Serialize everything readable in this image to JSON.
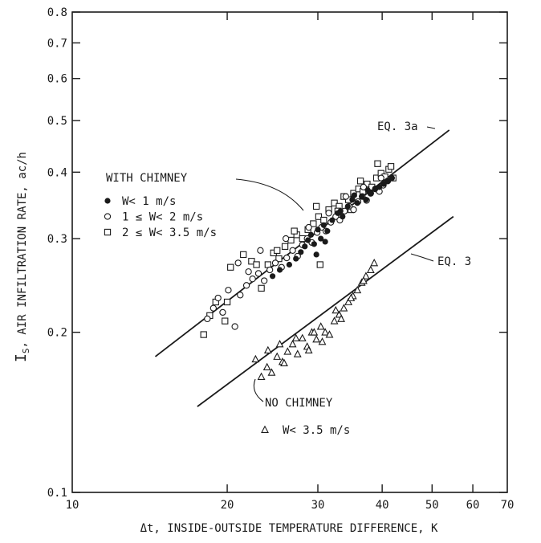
{
  "chart_data": {
    "type": "scatter",
    "x_scale": "log",
    "y_scale": "log",
    "xlim": [
      10,
      70
    ],
    "ylim": [
      0.1,
      0.8
    ],
    "grid": false,
    "xlabel": "Δt, INSIDE-OUTSIDE TEMPERATURE DIFFERENCE, K",
    "ylabel_main": "I",
    "ylabel_sub": "S",
    "ylabel_rest": ", AIR INFILTRATION RATE, ac/h",
    "x_ticks": [
      {
        "value": 10,
        "label": "10"
      },
      {
        "value": 20,
        "label": "20"
      },
      {
        "value": 30,
        "label": "30"
      },
      {
        "value": 40,
        "label": "40"
      },
      {
        "value": 50,
        "label": "50"
      },
      {
        "value": 60,
        "label": "60"
      },
      {
        "value": 70,
        "label": "70"
      }
    ],
    "y_ticks": [
      {
        "value": 0.1,
        "label": "0.1"
      },
      {
        "value": 0.2,
        "label": "0.2"
      },
      {
        "value": 0.3,
        "label": "0.3"
      },
      {
        "value": 0.4,
        "label": "0.4"
      },
      {
        "value": 0.5,
        "label": "0.5"
      },
      {
        "value": 0.6,
        "label": "0.6"
      },
      {
        "value": 0.7,
        "label": "0.7"
      },
      {
        "value": 0.8,
        "label": "0.8"
      }
    ],
    "legend_with_chimney": {
      "heading": "WITH CHIMNEY",
      "entries": [
        {
          "marker": "filled-circle",
          "label": "W< 1 m/s"
        },
        {
          "marker": "open-circle",
          "label": "1 ≤ W< 2 m/s"
        },
        {
          "marker": "open-square",
          "label": "2 ≤ W< 3.5 m/s"
        }
      ]
    },
    "legend_no_chimney": {
      "heading": "NO CHIMNEY",
      "entries": [
        {
          "marker": "open-triangle",
          "label": "W< 3.5 m/s"
        }
      ]
    },
    "lines": [
      {
        "name": "EQ. 3a",
        "x": [
          14.5,
          54
        ],
        "y": [
          0.18,
          0.48
        ]
      },
      {
        "name": "EQ. 3",
        "x": [
          17.5,
          55
        ],
        "y": [
          0.145,
          0.33
        ]
      }
    ],
    "series": [
      {
        "marker": "filled-circle",
        "x": [
          24.5,
          25.3,
          26.4,
          27.2,
          27.8,
          28.3,
          28.7,
          29.1,
          29.5,
          30.0,
          30.4,
          30.8,
          31.3,
          32.0,
          32.8,
          33.5,
          34.3,
          35.0,
          35.8,
          36.5,
          37.2,
          38.0,
          38.8,
          39.5,
          40.3,
          41.0,
          41.8,
          29.8,
          31.0,
          33.2,
          35.3,
          37.5
        ],
        "y": [
          0.255,
          0.262,
          0.268,
          0.275,
          0.283,
          0.29,
          0.298,
          0.305,
          0.293,
          0.312,
          0.3,
          0.318,
          0.31,
          0.325,
          0.335,
          0.33,
          0.345,
          0.355,
          0.35,
          0.36,
          0.355,
          0.365,
          0.372,
          0.375,
          0.38,
          0.385,
          0.39,
          0.28,
          0.296,
          0.338,
          0.362,
          0.37
        ]
      },
      {
        "marker": "open-circle",
        "x": [
          18.3,
          18.8,
          19.2,
          19.6,
          20.1,
          20.7,
          21.2,
          21.8,
          22.4,
          23.0,
          23.6,
          24.2,
          24.8,
          25.5,
          26.1,
          26.8,
          27.4,
          28.0,
          28.6,
          29.2,
          29.9,
          30.5,
          31.1,
          31.8,
          32.5,
          33.1,
          33.8,
          34.5,
          35.2,
          35.9,
          36.6,
          37.3,
          38.0,
          38.8,
          39.5,
          40.2,
          41.0,
          21.0,
          22.0,
          23.2,
          26.0,
          28.8,
          31.5,
          34.0,
          36.8,
          39.8
        ],
        "y": [
          0.212,
          0.222,
          0.232,
          0.218,
          0.24,
          0.205,
          0.235,
          0.245,
          0.252,
          0.258,
          0.25,
          0.262,
          0.27,
          0.265,
          0.276,
          0.285,
          0.278,
          0.292,
          0.3,
          0.295,
          0.308,
          0.315,
          0.31,
          0.322,
          0.33,
          0.325,
          0.338,
          0.345,
          0.34,
          0.352,
          0.36,
          0.354,
          0.365,
          0.372,
          0.368,
          0.378,
          0.385,
          0.27,
          0.26,
          0.285,
          0.3,
          0.315,
          0.335,
          0.36,
          0.375,
          0.39
        ]
      },
      {
        "marker": "open-square",
        "x": [
          18.0,
          18.5,
          19.0,
          19.8,
          20.3,
          21.5,
          22.3,
          23.3,
          24.0,
          24.6,
          25.2,
          25.9,
          26.6,
          27.3,
          28.0,
          28.7,
          29.4,
          30.1,
          30.8,
          31.5,
          32.3,
          33.0,
          33.7,
          34.4,
          35.2,
          36.0,
          36.7,
          37.4,
          38.2,
          39.0,
          39.8,
          40.5,
          41.2,
          42.0,
          20.0,
          22.8,
          25.0,
          27.0,
          29.8,
          32.8,
          36.3,
          39.2,
          41.6,
          30.3,
          34.8
        ],
        "y": [
          0.198,
          0.215,
          0.228,
          0.21,
          0.265,
          0.28,
          0.272,
          0.242,
          0.268,
          0.282,
          0.275,
          0.29,
          0.298,
          0.305,
          0.3,
          0.312,
          0.32,
          0.33,
          0.325,
          0.34,
          0.35,
          0.345,
          0.36,
          0.355,
          0.365,
          0.372,
          0.368,
          0.38,
          0.375,
          0.39,
          0.398,
          0.392,
          0.405,
          0.39,
          0.228,
          0.268,
          0.285,
          0.31,
          0.345,
          0.338,
          0.385,
          0.415,
          0.41,
          0.268,
          0.34
        ]
      },
      {
        "marker": "open-triangle",
        "x": [
          22.7,
          23.3,
          23.9,
          24.4,
          25.0,
          25.6,
          26.2,
          26.8,
          27.4,
          28.0,
          28.6,
          29.2,
          29.8,
          30.4,
          31.0,
          31.6,
          32.3,
          33.0,
          33.7,
          34.4,
          35.1,
          35.8,
          36.5,
          37.2,
          38.0,
          38.6,
          24.0,
          25.3,
          27.2,
          28.8,
          30.6,
          32.5,
          34.8,
          36.8,
          25.8,
          29.5,
          33.3
        ],
        "y": [
          0.178,
          0.165,
          0.172,
          0.168,
          0.18,
          0.176,
          0.184,
          0.19,
          0.182,
          0.195,
          0.188,
          0.2,
          0.194,
          0.205,
          0.2,
          0.198,
          0.21,
          0.216,
          0.222,
          0.228,
          0.234,
          0.24,
          0.248,
          0.255,
          0.262,
          0.27,
          0.185,
          0.19,
          0.195,
          0.185,
          0.192,
          0.22,
          0.232,
          0.25,
          0.175,
          0.2,
          0.212
        ]
      }
    ]
  }
}
